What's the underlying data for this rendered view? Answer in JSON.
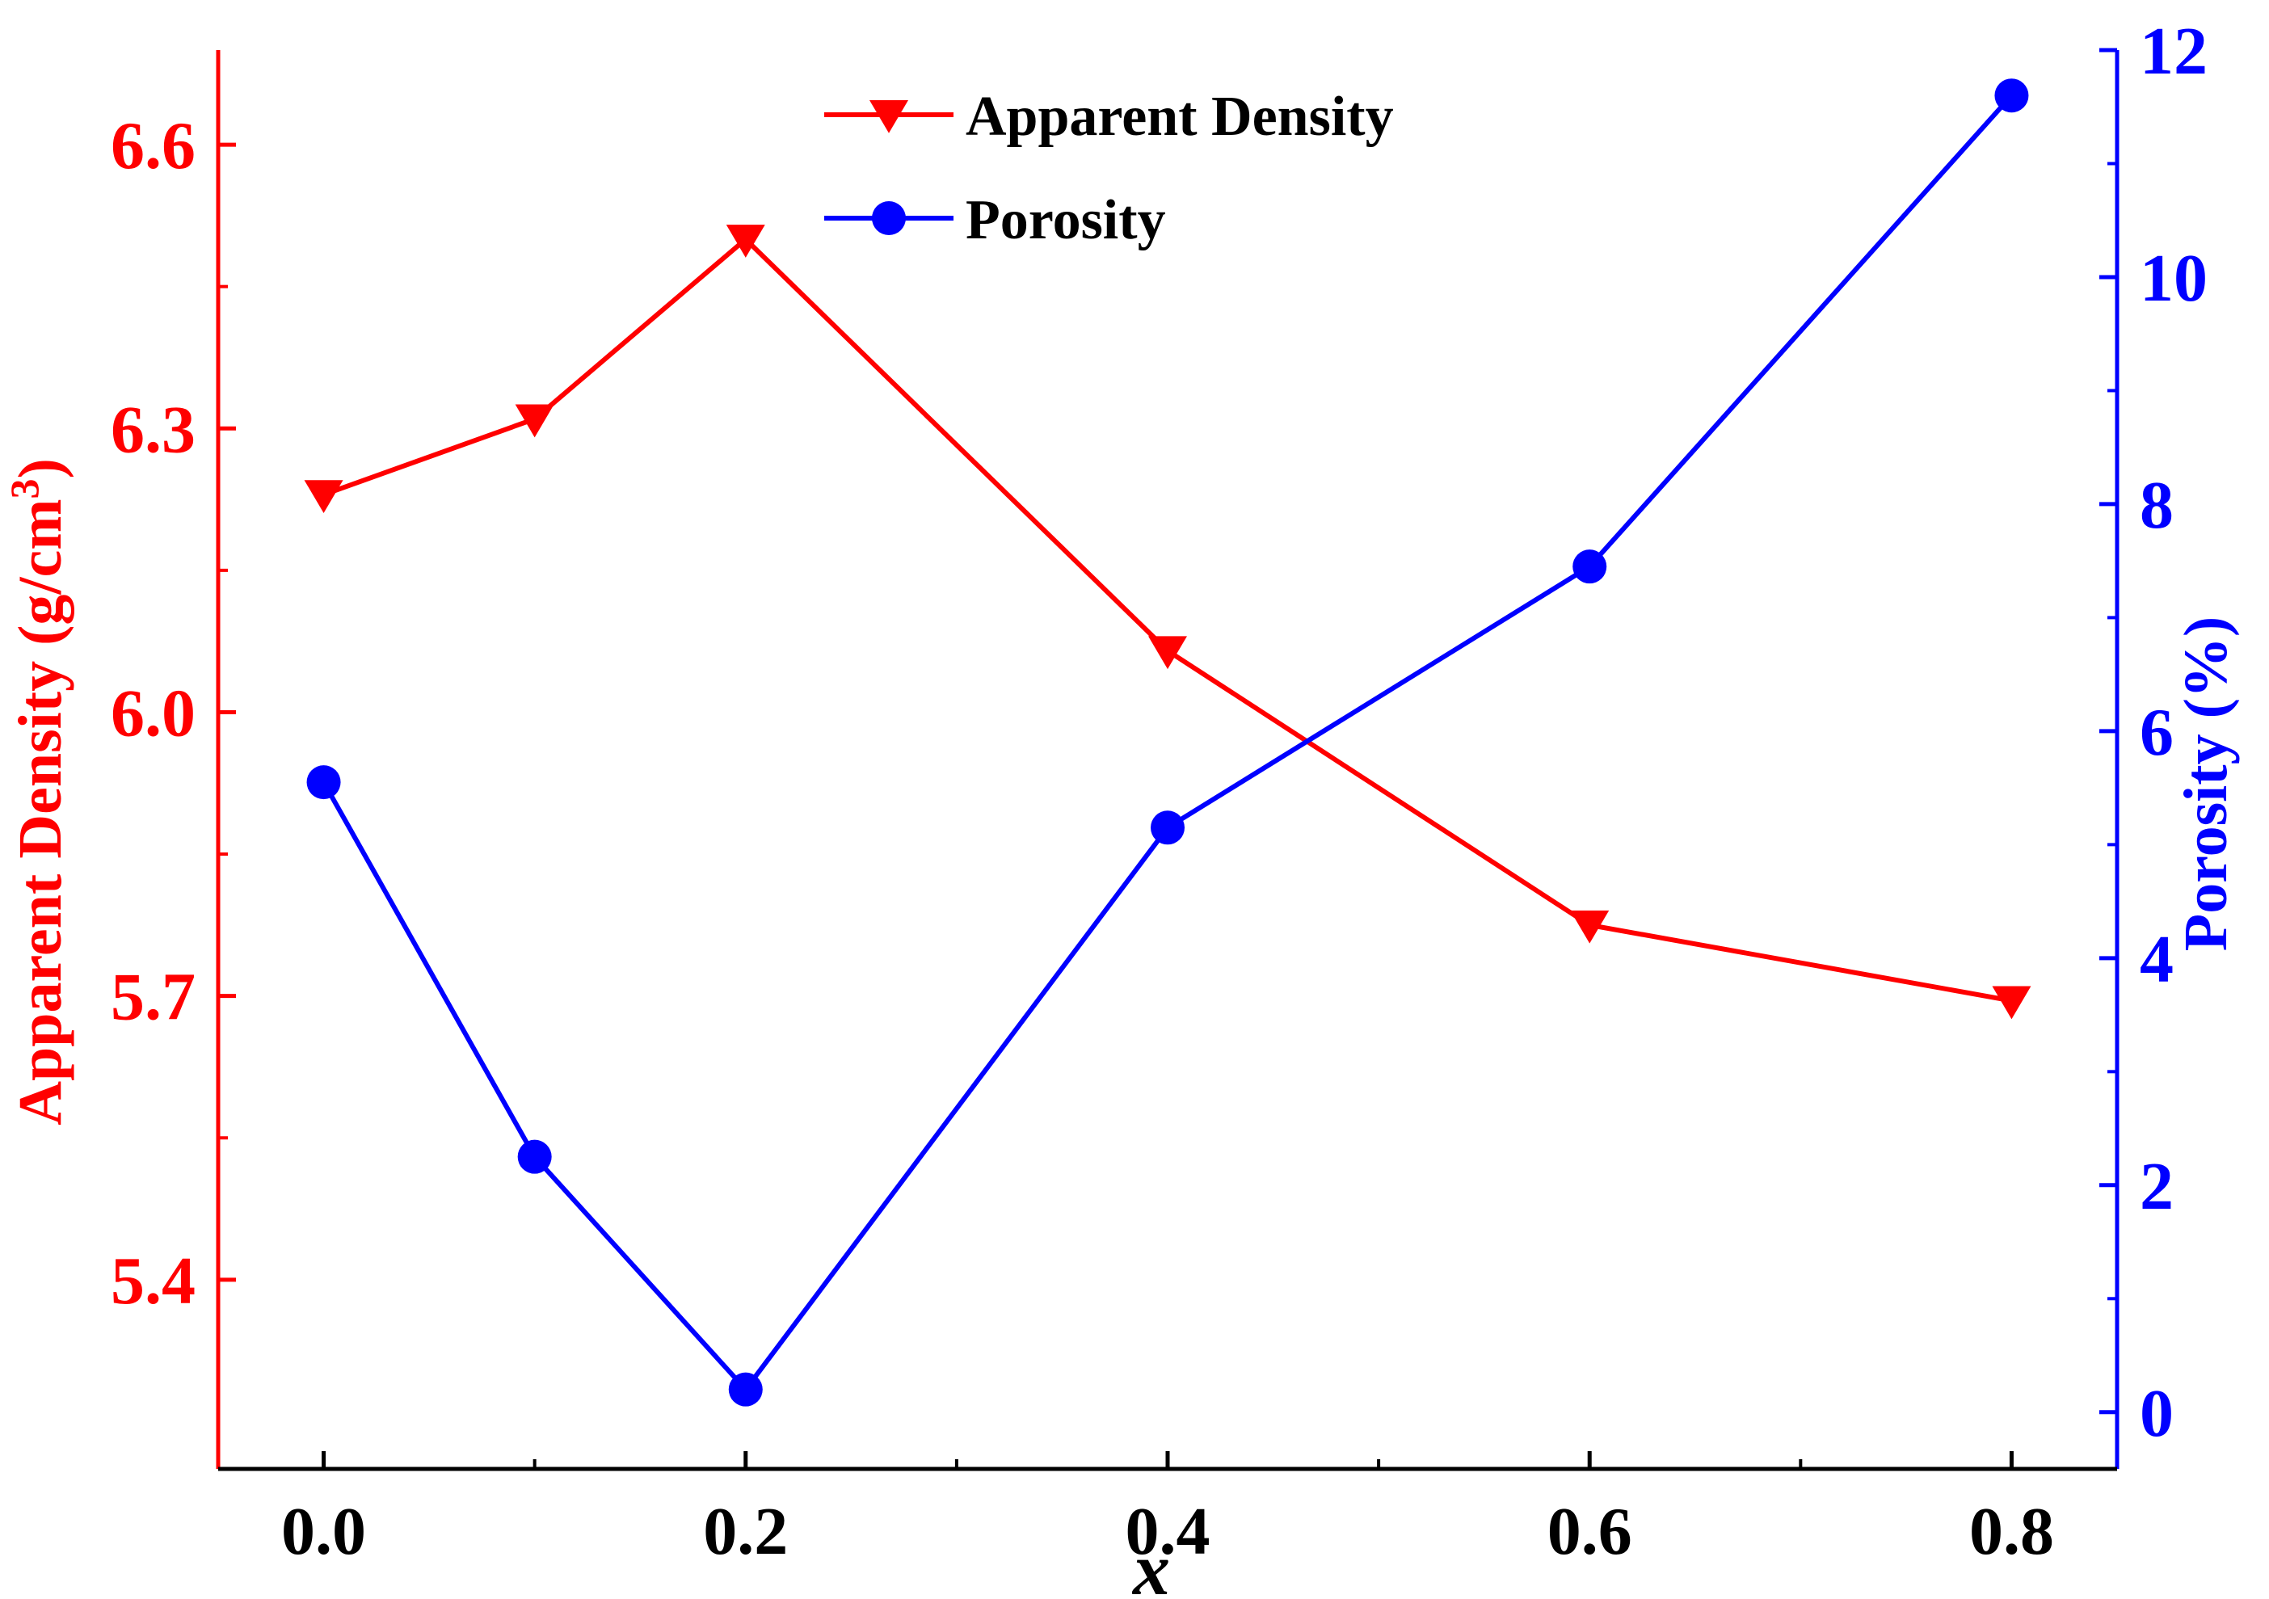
{
  "chart_data": {
    "type": "line",
    "title": "",
    "xlabel": "x",
    "x": [
      0.0,
      0.1,
      0.2,
      0.4,
      0.6,
      0.8
    ],
    "xlim": [
      -0.05,
      0.85
    ],
    "x_ticks": [
      "0.0",
      "0.2",
      "0.4",
      "0.6",
      "0.8"
    ],
    "x_tick_values": [
      0.0,
      0.2,
      0.4,
      0.6,
      0.8
    ],
    "x_minor_tick_values": [
      0.1,
      0.3,
      0.5,
      0.7
    ],
    "y_left": {
      "label_main": "Apparent Density (g/cm",
      "label_sup": "3",
      "label_close": ")",
      "lim": [
        5.2,
        6.7
      ],
      "ticks": [
        "5.4",
        "5.7",
        "6.0",
        "6.3",
        "6.6"
      ],
      "tick_values": [
        5.4,
        5.7,
        6.0,
        6.3,
        6.6
      ],
      "color": "#ff0000"
    },
    "y_right": {
      "label": "Porosity (%)",
      "lim": [
        -0.5,
        12
      ],
      "ticks": [
        "0",
        "2",
        "4",
        "6",
        "8",
        "10",
        "12"
      ],
      "tick_values": [
        0,
        2,
        4,
        6,
        8,
        10,
        12
      ],
      "color": "#0000ff"
    },
    "series": [
      {
        "name": "Apparent Density",
        "axis": "left",
        "marker": "triangle-down",
        "color": "#ff0000",
        "values": [
          6.23,
          6.31,
          6.5,
          6.065,
          5.775,
          5.695
        ]
      },
      {
        "name": "Porosity",
        "axis": "right",
        "marker": "circle",
        "color": "#0000ff",
        "values": [
          5.55,
          2.25,
          0.2,
          5.15,
          7.45,
          11.6
        ]
      }
    ],
    "legend_position": "top-center",
    "grid": false
  }
}
